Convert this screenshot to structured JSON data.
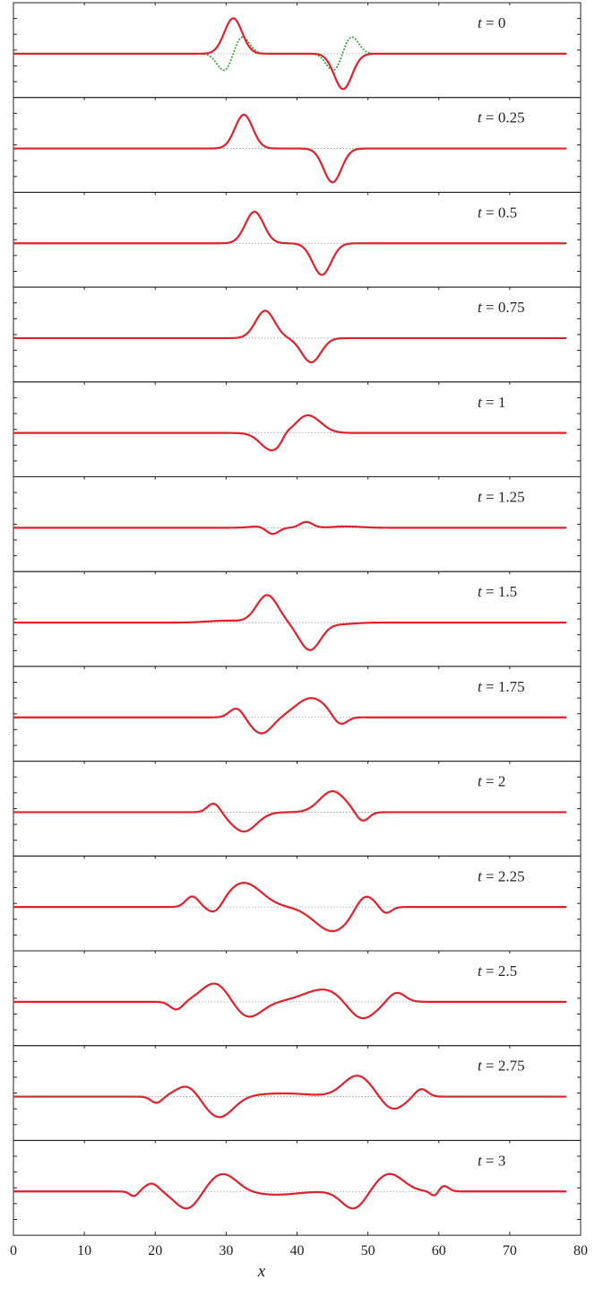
{
  "chart_data": {
    "type": "line",
    "xlabel": "x",
    "xlim": [
      0,
      80
    ],
    "xticks": [
      0,
      10,
      20,
      30,
      40,
      50,
      60,
      70,
      80
    ],
    "x_end": 78,
    "ylim": [
      -1.25,
      1.25
    ],
    "colors": {
      "main": "#e0202a",
      "secondary": "#2a9a2a",
      "baseline": "#9a9a9a",
      "frame": "#222222"
    },
    "panels": [
      {
        "label": "t = 0",
        "t": 0,
        "components": [
          {
            "amp": 1.1,
            "center": 31.0,
            "width": 1.25
          },
          {
            "amp": -1.1,
            "center": 46.5,
            "width": 1.25
          }
        ],
        "secondary": [
          {
            "amp": 0.55,
            "center": 32.2,
            "width": 1.05
          },
          {
            "amp": -0.55,
            "center": 29.8,
            "width": 1.05
          },
          {
            "amp": 0.55,
            "center": 47.6,
            "width": 1.05
          },
          {
            "amp": -0.55,
            "center": 45.2,
            "width": 1.05
          }
        ]
      },
      {
        "label": "t = 0.25",
        "t": 0.25,
        "components": [
          {
            "amp": 1.05,
            "center": 32.5,
            "width": 1.25
          },
          {
            "amp": -1.05,
            "center": 45.0,
            "width": 1.25
          }
        ]
      },
      {
        "label": "t = 0.5",
        "t": 0.5,
        "components": [
          {
            "amp": 0.98,
            "center": 34.0,
            "width": 1.3
          },
          {
            "amp": -0.98,
            "center": 43.5,
            "width": 1.3
          }
        ]
      },
      {
        "label": "t = 0.75",
        "t": 0.75,
        "components": [
          {
            "amp": 0.85,
            "center": 35.5,
            "width": 1.35
          },
          {
            "amp": -0.75,
            "center": 42.0,
            "width": 1.35
          }
        ]
      },
      {
        "label": "t = 1",
        "t": 1,
        "components": [
          {
            "amp": -0.55,
            "center": 36.5,
            "width": 1.6
          },
          {
            "amp": 0.55,
            "center": 41.5,
            "width": 1.8
          },
          {
            "amp": 0.12,
            "center": 38.5,
            "width": 0.6
          }
        ]
      },
      {
        "label": "t = 1.25",
        "t": 1.25,
        "components": [
          {
            "amp": -0.22,
            "center": 36.5,
            "width": 0.9
          },
          {
            "amp": 0.18,
            "center": 41.3,
            "width": 0.9
          },
          {
            "amp": 0.05,
            "center": 35.0,
            "width": 1.5
          },
          {
            "amp": 0.04,
            "center": 47.0,
            "width": 2.0
          }
        ]
      },
      {
        "label": "t = 1.5",
        "t": 1.5,
        "components": [
          {
            "amp": 0.85,
            "center": 35.8,
            "width": 1.5
          },
          {
            "amp": -0.85,
            "center": 41.8,
            "width": 1.5
          },
          {
            "amp": 0.06,
            "center": 30.0,
            "width": 2.5
          },
          {
            "amp": -0.05,
            "center": 46.0,
            "width": 2.0
          }
        ]
      },
      {
        "label": "t = 1.75",
        "t": 1.75,
        "components": [
          {
            "amp": -0.5,
            "center": 35.0,
            "width": 1.5
          },
          {
            "amp": 0.6,
            "center": 42.0,
            "width": 2.2
          },
          {
            "amp": 0.3,
            "center": 31.5,
            "width": 1.0
          },
          {
            "amp": -0.3,
            "center": 46.0,
            "width": 1.0
          }
        ]
      },
      {
        "label": "t = 2",
        "t": 2,
        "components": [
          {
            "amp": -0.6,
            "center": 32.5,
            "width": 1.8
          },
          {
            "amp": 0.65,
            "center": 45.0,
            "width": 1.8
          },
          {
            "amp": 0.3,
            "center": 28.3,
            "width": 0.9
          },
          {
            "amp": -0.3,
            "center": 49.2,
            "width": 0.9
          }
        ]
      },
      {
        "label": "t = 2.25",
        "t": 2.25,
        "components": [
          {
            "amp": 0.75,
            "center": 32.5,
            "width": 2.5
          },
          {
            "amp": -0.75,
            "center": 45.0,
            "width": 2.5
          },
          {
            "amp": 0.32,
            "center": 25.2,
            "width": 0.9
          },
          {
            "amp": -0.32,
            "center": 28.5,
            "width": 1.1
          },
          {
            "amp": 0.45,
            "center": 49.5,
            "width": 1.3
          },
          {
            "amp": -0.2,
            "center": 52.5,
            "width": 0.8
          }
        ]
      },
      {
        "label": "t = 2.5",
        "t": 2.5,
        "components": [
          {
            "amp": 0.6,
            "center": 28.5,
            "width": 2.0
          },
          {
            "amp": -0.5,
            "center": 33.0,
            "width": 2.0
          },
          {
            "amp": 0.4,
            "center": 44.0,
            "width": 3.0
          },
          {
            "amp": -0.6,
            "center": 49.0,
            "width": 2.0
          },
          {
            "amp": -0.25,
            "center": 23.0,
            "width": 0.9
          },
          {
            "amp": 0.3,
            "center": 54.0,
            "width": 1.2
          }
        ]
      },
      {
        "label": "t = 2.75",
        "t": 2.75,
        "components": [
          {
            "amp": 0.35,
            "center": 24.5,
            "width": 1.6
          },
          {
            "amp": -0.65,
            "center": 29.0,
            "width": 2.0
          },
          {
            "amp": 0.65,
            "center": 48.5,
            "width": 2.0
          },
          {
            "amp": -0.4,
            "center": 53.5,
            "width": 1.6
          },
          {
            "amp": -0.2,
            "center": 20.2,
            "width": 0.8
          },
          {
            "amp": 0.25,
            "center": 57.5,
            "width": 0.9
          },
          {
            "amp": 0.1,
            "center": 38.0,
            "width": 4.0
          }
        ]
      },
      {
        "label": "t = 3",
        "t": 3,
        "components": [
          {
            "amp": 0.55,
            "center": 29.5,
            "width": 2.0
          },
          {
            "amp": -0.55,
            "center": 24.5,
            "width": 1.7
          },
          {
            "amp": 0.55,
            "center": 53.0,
            "width": 2.0
          },
          {
            "amp": -0.55,
            "center": 48.0,
            "width": 1.7
          },
          {
            "amp": 0.25,
            "center": 19.5,
            "width": 1.0
          },
          {
            "amp": -0.15,
            "center": 17.0,
            "width": 0.6
          },
          {
            "amp": 0.2,
            "center": 60.5,
            "width": 0.8
          },
          {
            "amp": -0.2,
            "center": 59.5,
            "width": 0.6
          },
          {
            "amp": -0.1,
            "center": 37.0,
            "width": 3.0
          }
        ]
      }
    ]
  }
}
